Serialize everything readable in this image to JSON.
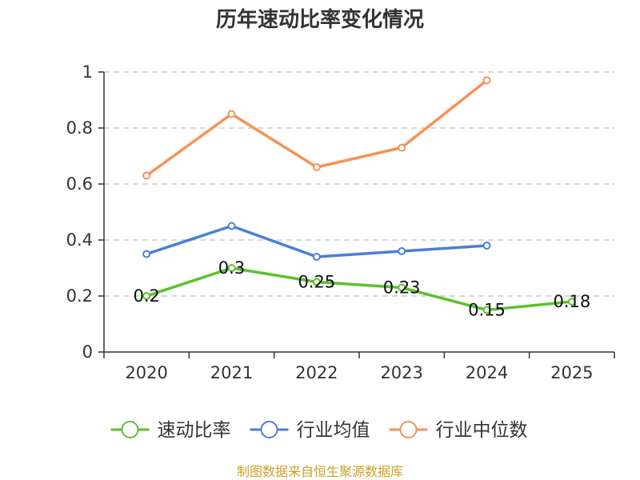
{
  "chart_data": {
    "type": "line",
    "title": "历年速动比率变化情况",
    "categories": [
      "2020",
      "2021",
      "2022",
      "2023",
      "2024",
      "2025"
    ],
    "ylim": [
      0,
      1
    ],
    "yticks": [
      "0",
      "0.2",
      "0.4",
      "0.6",
      "0.8",
      "1"
    ],
    "grid": true,
    "legend_position": "bottom",
    "series": [
      {
        "name": "速动比率",
        "color": "#5cc12f",
        "values": [
          0.2,
          0.3,
          0.25,
          0.23,
          0.15,
          0.18
        ],
        "labels": [
          "0.2",
          "0.3",
          "0.25",
          "0.23",
          "0.15",
          "0.18"
        ]
      },
      {
        "name": "行业均值",
        "color": "#4a7fd6",
        "values": [
          0.35,
          0.45,
          0.34,
          0.36,
          0.38,
          null
        ]
      },
      {
        "name": "行业中位数",
        "color": "#f79256",
        "values": [
          0.63,
          0.85,
          0.66,
          0.73,
          0.97,
          null
        ]
      }
    ],
    "source": "制图数据来自恒生聚源数据库"
  }
}
